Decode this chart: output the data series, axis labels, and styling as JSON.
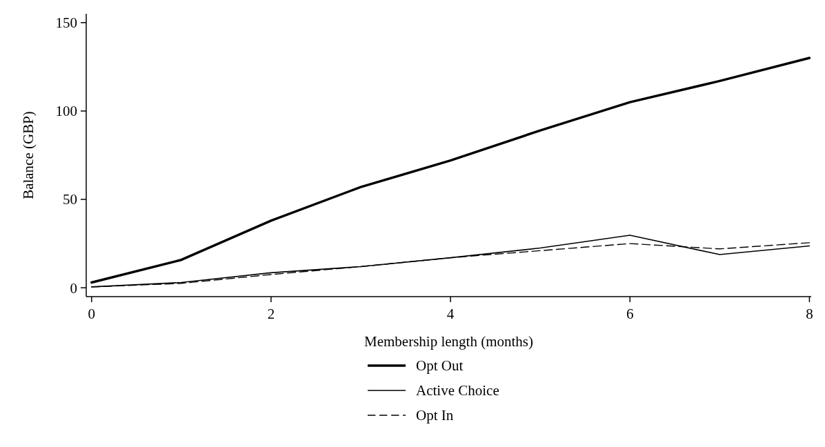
{
  "chart_data": {
    "type": "line",
    "xlabel": "Membership length (months)",
    "ylabel": "Balance (GBP)",
    "x": [
      0,
      1,
      2,
      3,
      4,
      5,
      6,
      7,
      8
    ],
    "xlim": [
      -0.06,
      8.02
    ],
    "xticks": [
      0,
      2,
      4,
      6,
      8
    ],
    "ylim": [
      -5,
      155
    ],
    "yticks": [
      0,
      50,
      100,
      150
    ],
    "grid": false,
    "legend": "bottom",
    "marker": "none",
    "series": [
      {
        "name": "Opt Out",
        "color": "#000000",
        "values": [
          3,
          15.8,
          38,
          57,
          72,
          89,
          105,
          117,
          130
        ]
      },
      {
        "name": "Active Choice",
        "color": "#000000",
        "values": [
          0.5,
          3,
          8.5,
          12,
          17,
          22.5,
          29.7,
          18.8,
          23.7
        ]
      },
      {
        "name": "Opt In",
        "color": "#000000",
        "values": [
          0.5,
          2.5,
          7.5,
          12,
          17,
          21,
          25,
          22,
          25.5
        ],
        "line_style": "dashed"
      }
    ]
  }
}
